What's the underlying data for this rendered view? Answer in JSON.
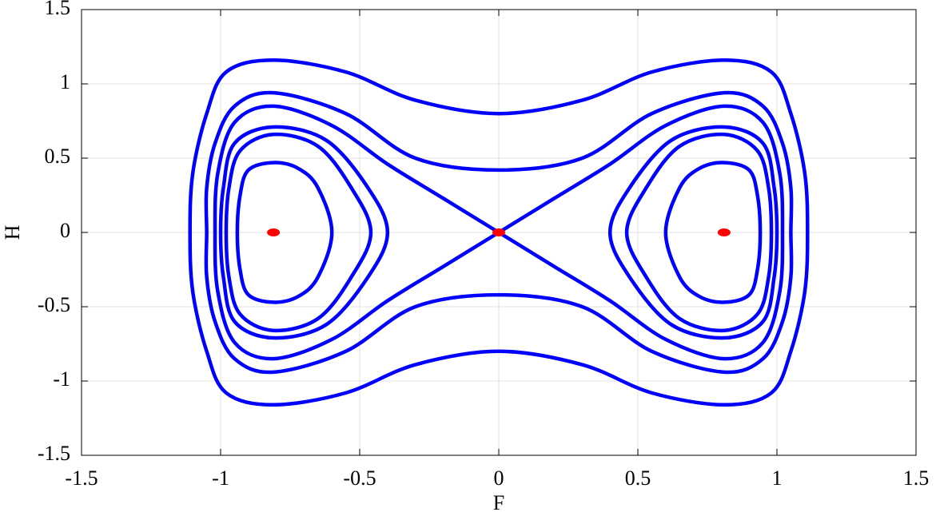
{
  "chart_data": {
    "type": "line",
    "x_label": "F",
    "y_label": "H",
    "xlim": [
      -1.5,
      1.5
    ],
    "ylim": [
      -1.5,
      1.5
    ],
    "xticks": [
      -1.5,
      -1,
      -0.5,
      0,
      0.5,
      1,
      1.5
    ],
    "yticks": [
      -1.5,
      -1,
      -0.5,
      0,
      0.5,
      1,
      1.5
    ],
    "grid": true,
    "series": [
      {
        "color": "#0000ff",
        "closed": true,
        "x": [
          0,
          0.3,
          0.55,
          0.81,
          0.98,
          1.05,
          1.1,
          1.11,
          1.1,
          1.05,
          0.98,
          0.81,
          0.55,
          0.3,
          0,
          -0.3,
          -0.55,
          -0.81,
          -0.98,
          -1.05,
          -1.1,
          -1.11,
          -1.1,
          -1.05,
          -0.98,
          -0.81,
          -0.55,
          -0.3
        ],
        "values": [
          0.8,
          0.89,
          1.08,
          1.16,
          1.08,
          0.8,
          0.4,
          0,
          -0.4,
          -0.8,
          -1.08,
          -1.16,
          -1.08,
          -0.89,
          -0.8,
          -0.89,
          -1.08,
          -1.16,
          -1.08,
          -0.8,
          -0.4,
          0,
          0.4,
          0.8,
          1.08,
          1.16,
          1.08,
          0.89
        ]
      },
      {
        "color": "#0000ff",
        "closed": true,
        "x": [
          0,
          0.3,
          0.55,
          0.81,
          0.95,
          1.02,
          1.05,
          1.05,
          1.05,
          1.02,
          0.95,
          0.81,
          0.55,
          0.3,
          0,
          -0.3,
          -0.55,
          -0.81,
          -0.95,
          -1.02,
          -1.05,
          -1.05,
          -1.05,
          -1.02,
          -0.95,
          -0.81,
          -0.55,
          -0.3
        ],
        "values": [
          0.42,
          0.5,
          0.8,
          0.94,
          0.85,
          0.6,
          0.3,
          0,
          -0.3,
          -0.6,
          -0.85,
          -0.94,
          -0.8,
          -0.5,
          -0.42,
          -0.5,
          -0.8,
          -0.94,
          -0.85,
          -0.6,
          -0.3,
          0,
          0.3,
          0.6,
          0.85,
          0.94,
          0.8,
          0.5
        ]
      },
      {
        "color": "#0000ff",
        "closed": false,
        "x": [
          0,
          0.2,
          0.4,
          0.6,
          0.81,
          0.95,
          1.01,
          1.02,
          1.01,
          0.95,
          0.81,
          0.6,
          0.4,
          0.2,
          0
        ],
        "values": [
          0,
          0.23,
          0.46,
          0.72,
          0.85,
          0.74,
          0.4,
          0,
          -0.4,
          -0.74,
          -0.85,
          -0.72,
          -0.46,
          -0.23,
          0
        ]
      },
      {
        "color": "#0000ff",
        "closed": false,
        "x": [
          0,
          -0.2,
          -0.4,
          -0.6,
          -0.81,
          -0.95,
          -1.01,
          -1.02,
          -1.01,
          -0.95,
          -0.81,
          -0.6,
          -0.4,
          -0.2,
          0
        ],
        "values": [
          0,
          0.23,
          0.46,
          0.72,
          0.85,
          0.74,
          0.4,
          0,
          -0.4,
          -0.74,
          -0.85,
          -0.72,
          -0.46,
          -0.23,
          0
        ]
      },
      {
        "color": "#0000ff",
        "closed": true,
        "x": [
          0.4,
          0.47,
          0.62,
          0.81,
          0.95,
          0.99,
          1.0,
          0.99,
          0.95,
          0.81,
          0.62,
          0.47
        ],
        "values": [
          0,
          0.3,
          0.62,
          0.71,
          0.6,
          0.3,
          0,
          -0.3,
          -0.6,
          -0.71,
          -0.62,
          -0.3
        ]
      },
      {
        "color": "#0000ff",
        "closed": true,
        "x": [
          -0.4,
          -0.47,
          -0.62,
          -0.81,
          -0.95,
          -0.99,
          -1.0,
          -0.99,
          -0.95,
          -0.81,
          -0.62,
          -0.47
        ],
        "values": [
          0,
          0.3,
          0.62,
          0.71,
          0.6,
          0.3,
          0,
          -0.3,
          -0.6,
          -0.71,
          -0.62,
          -0.3
        ]
      },
      {
        "color": "#0000ff",
        "closed": true,
        "x": [
          0.46,
          0.53,
          0.65,
          0.81,
          0.93,
          0.97,
          0.98,
          0.97,
          0.93,
          0.81,
          0.65,
          0.53
        ],
        "values": [
          0,
          0.3,
          0.58,
          0.66,
          0.55,
          0.3,
          0,
          -0.3,
          -0.55,
          -0.66,
          -0.58,
          -0.3
        ]
      },
      {
        "color": "#0000ff",
        "closed": true,
        "x": [
          -0.46,
          -0.53,
          -0.65,
          -0.81,
          -0.93,
          -0.97,
          -0.98,
          -0.97,
          -0.93,
          -0.81,
          -0.65,
          -0.53
        ],
        "values": [
          0,
          0.3,
          0.58,
          0.66,
          0.55,
          0.3,
          0,
          -0.3,
          -0.55,
          -0.66,
          -0.58,
          -0.3
        ]
      },
      {
        "color": "#0000ff",
        "closed": true,
        "x": [
          0.6,
          0.65,
          0.72,
          0.81,
          0.9,
          0.93,
          0.94,
          0.93,
          0.9,
          0.81,
          0.72,
          0.65
        ],
        "values": [
          0,
          0.3,
          0.43,
          0.47,
          0.42,
          0.25,
          0,
          -0.25,
          -0.42,
          -0.47,
          -0.43,
          -0.3
        ]
      },
      {
        "color": "#0000ff",
        "closed": true,
        "x": [
          -0.6,
          -0.65,
          -0.72,
          -0.81,
          -0.9,
          -0.93,
          -0.94,
          -0.93,
          -0.9,
          -0.81,
          -0.72,
          -0.65
        ],
        "values": [
          0,
          0.3,
          0.43,
          0.47,
          0.42,
          0.25,
          0,
          -0.25,
          -0.42,
          -0.47,
          -0.43,
          -0.3
        ]
      }
    ],
    "points": {
      "color": "#ff0000",
      "x": [
        -0.81,
        0,
        0.81
      ],
      "values": [
        0,
        0,
        0
      ]
    }
  }
}
